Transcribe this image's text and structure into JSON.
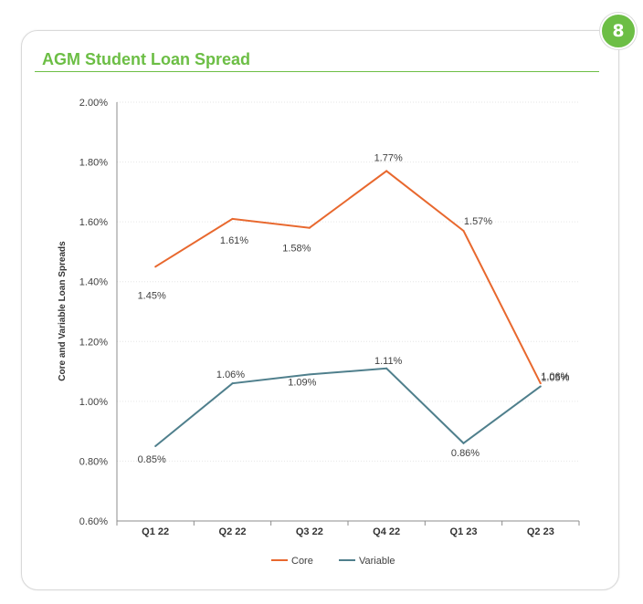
{
  "badge": "8",
  "colors": {
    "core": "#e8682e",
    "variable": "#4f7f8c",
    "accent": "#6cbe45"
  },
  "chart_data": {
    "type": "line",
    "title": "AGM Student Loan Spread",
    "xlabel": "",
    "ylabel": "Core and Variable Loan Spreads",
    "categories": [
      "Q1 22",
      "Q2 22",
      "Q3 22",
      "Q4 22",
      "Q1 23",
      "Q2 23"
    ],
    "ylim": [
      0.6,
      2.0
    ],
    "yticks": [
      0.6,
      0.8,
      1.0,
      1.2,
      1.4,
      1.6,
      1.8,
      2.0
    ],
    "ytick_labels": [
      "0.60%",
      "0.80%",
      "1.00%",
      "1.20%",
      "1.40%",
      "1.60%",
      "1.80%",
      "2.00%"
    ],
    "series": [
      {
        "name": "Core",
        "values": [
          1.45,
          1.61,
          1.58,
          1.77,
          1.57,
          1.06
        ],
        "labels": [
          "1.45%",
          "1.61%",
          "1.58%",
          "1.77%",
          "1.57%",
          "1.06%"
        ]
      },
      {
        "name": "Variable",
        "values": [
          0.85,
          1.06,
          1.09,
          1.11,
          0.86,
          1.05
        ],
        "labels": [
          "0.85%",
          "1.06%",
          "1.09%",
          "1.11%",
          "0.86%",
          "1.05%"
        ]
      }
    ],
    "legend": "bottom-center",
    "grid": true
  }
}
